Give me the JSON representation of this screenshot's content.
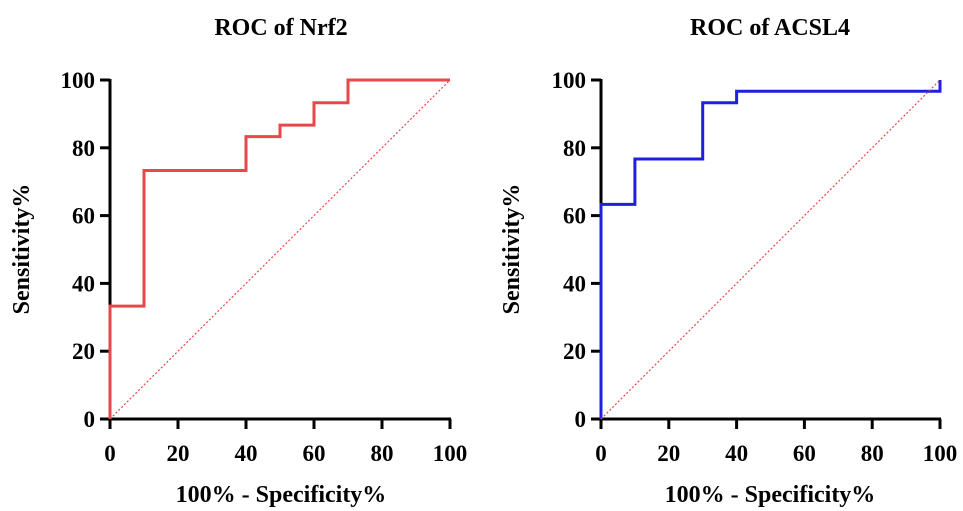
{
  "chart_data": [
    {
      "type": "line",
      "title": "ROC of Nrf2",
      "xlabel": "100% - Specificity%",
      "ylabel": "Sensitivity%",
      "xlim": [
        0,
        100
      ],
      "ylim": [
        0,
        100
      ],
      "xticks": [
        "0",
        "20",
        "40",
        "60",
        "80",
        "100"
      ],
      "yticks": [
        "0",
        "20",
        "40",
        "60",
        "80",
        "100"
      ],
      "grid": false,
      "series": [
        {
          "color": "#e8474b",
          "style": "step",
          "points": [
            [
              0,
              0
            ],
            [
              0,
              33.3
            ],
            [
              10,
              33.3
            ],
            [
              10,
              73.3
            ],
            [
              40,
              73.3
            ],
            [
              40,
              83.3
            ],
            [
              50,
              83.3
            ],
            [
              50,
              86.7
            ],
            [
              60,
              86.7
            ],
            [
              60,
              93.3
            ],
            [
              70,
              93.3
            ],
            [
              70,
              100
            ],
            [
              100,
              100
            ]
          ]
        },
        {
          "color": "#e8474b",
          "style": "dotted",
          "points": [
            [
              0,
              0
            ],
            [
              100,
              100
            ]
          ]
        }
      ]
    },
    {
      "type": "line",
      "title": "ROC of ACSL4",
      "xlabel": "100% - Specificity%",
      "ylabel": "Sensitivity%",
      "xlim": [
        0,
        100
      ],
      "ylim": [
        0,
        100
      ],
      "xticks": [
        "0",
        "20",
        "40",
        "60",
        "80",
        "100"
      ],
      "yticks": [
        "0",
        "20",
        "40",
        "60",
        "80",
        "100"
      ],
      "grid": false,
      "series": [
        {
          "color": "#1f1fe0",
          "style": "step",
          "points": [
            [
              0,
              0
            ],
            [
              0,
              63.3
            ],
            [
              10,
              63.3
            ],
            [
              10,
              76.7
            ],
            [
              30,
              76.7
            ],
            [
              30,
              93.3
            ],
            [
              40,
              93.3
            ],
            [
              40,
              96.7
            ],
            [
              100,
              96.7
            ],
            [
              100,
              100
            ]
          ]
        },
        {
          "color": "#e8474b",
          "style": "dotted",
          "points": [
            [
              0,
              0
            ],
            [
              100,
              100
            ]
          ]
        }
      ]
    }
  ]
}
